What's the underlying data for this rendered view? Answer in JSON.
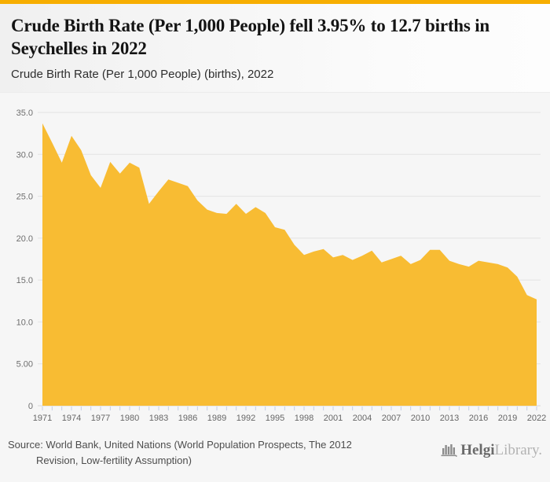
{
  "page": {
    "top_bar_color": "#F7AE00",
    "background_color": "#f6f6f6"
  },
  "header": {
    "title": "Crude Birth Rate (Per 1,000 People) fell 3.95% to 12.7 births in Seychelles in 2022",
    "subtitle": "Crude Birth Rate (Per 1,000 People) (births), 2022"
  },
  "chart_data": {
    "type": "area",
    "title": "Crude Birth Rate (Per 1,000 People) (births), 2022",
    "series_name": "Crude Birth Rate (Per 1,000 People)",
    "x": [
      1971,
      1972,
      1973,
      1974,
      1975,
      1976,
      1977,
      1978,
      1979,
      1980,
      1981,
      1982,
      1983,
      1984,
      1985,
      1986,
      1987,
      1988,
      1989,
      1990,
      1991,
      1992,
      1993,
      1994,
      1995,
      1996,
      1997,
      1998,
      1999,
      2000,
      2001,
      2002,
      2003,
      2004,
      2005,
      2006,
      2007,
      2008,
      2009,
      2010,
      2011,
      2012,
      2013,
      2014,
      2015,
      2016,
      2017,
      2018,
      2019,
      2020,
      2021,
      2022
    ],
    "values": [
      33.7,
      31.4,
      29.0,
      32.2,
      30.5,
      27.5,
      26.0,
      29.1,
      27.7,
      29.0,
      28.4,
      24.1,
      25.6,
      27.0,
      26.6,
      26.2,
      24.5,
      23.4,
      23.0,
      22.9,
      24.1,
      22.9,
      23.7,
      23.0,
      21.3,
      21.0,
      19.2,
      18.0,
      18.4,
      18.7,
      17.7,
      18.0,
      17.4,
      17.9,
      18.5,
      17.1,
      17.5,
      17.9,
      16.9,
      17.4,
      18.6,
      18.6,
      17.3,
      16.9,
      16.6,
      17.3,
      17.1,
      16.9,
      16.5,
      15.4,
      13.2,
      12.7
    ],
    "ylim": [
      0,
      35
    ],
    "ytick_values": [
      35,
      30,
      25,
      20,
      15,
      10,
      5,
      0
    ],
    "ytick_labels": [
      "35.0",
      "30.0",
      "25.0",
      "20.0",
      "15.0",
      "10.0",
      "5.00",
      "0"
    ],
    "xtick_labeled_years": [
      1971,
      1974,
      1977,
      1980,
      1983,
      1986,
      1989,
      1992,
      1995,
      1998,
      2001,
      2004,
      2007,
      2010,
      2013,
      2016,
      2019,
      2022
    ],
    "grid": true,
    "legend": "none",
    "area_color": "#F8BC33",
    "gridline_color": "#e3e3e3",
    "baseline_color": "#d8d8d8",
    "tick_color": "#c5cee6"
  },
  "footer": {
    "source_lines": {
      "line1": "Source: World Bank, United Nations (World Population Prospects, The 2012",
      "line2": "Revision, Low-fertility Assumption)"
    },
    "logo": {
      "primary": "Helgi",
      "secondary": "Library."
    }
  }
}
